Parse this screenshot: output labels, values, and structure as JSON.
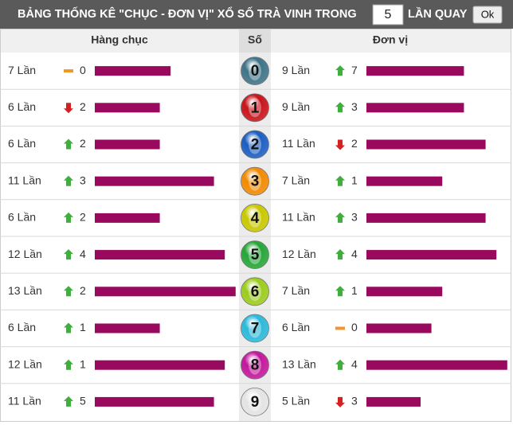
{
  "header": {
    "title": "BẢNG THỐNG KÊ \"CHỤC - ĐƠN VỊ\" XỔ SỐ TRÀ VINH TRONG",
    "input_value": "5",
    "suffix": "LẦN QUAY",
    "button": "Ok"
  },
  "table": {
    "columns": [
      "Hàng chục",
      "Số",
      "Đơn vị"
    ],
    "bar_color": "#990a5f",
    "rows": [
      {
        "digit": "0",
        "ball_color": "#3f7388",
        "tens": {
          "label": "7 Lần",
          "count": 7,
          "trend": "flat",
          "change": 0
        },
        "units": {
          "label": "9 Lần",
          "count": 9,
          "trend": "up",
          "change": 7
        }
      },
      {
        "digit": "1",
        "ball_color": "#c8141b",
        "tens": {
          "label": "6 Lần",
          "count": 6,
          "trend": "down",
          "change": 2
        },
        "units": {
          "label": "9 Lần",
          "count": 9,
          "trend": "up",
          "change": 3
        }
      },
      {
        "digit": "2",
        "ball_color": "#1c5ec2",
        "tens": {
          "label": "6 Lần",
          "count": 6,
          "trend": "up",
          "change": 2
        },
        "units": {
          "label": "11 Lần",
          "count": 11,
          "trend": "down",
          "change": 2
        }
      },
      {
        "digit": "3",
        "ball_color": "#f28a00",
        "tens": {
          "label": "11 Lần",
          "count": 11,
          "trend": "up",
          "change": 3
        },
        "units": {
          "label": "7 Lần",
          "count": 7,
          "trend": "up",
          "change": 1
        }
      },
      {
        "digit": "4",
        "ball_color": "#c9c800",
        "tens": {
          "label": "6 Lần",
          "count": 6,
          "trend": "up",
          "change": 2
        },
        "units": {
          "label": "11 Lần",
          "count": 11,
          "trend": "up",
          "change": 3
        }
      },
      {
        "digit": "5",
        "ball_color": "#26a638",
        "tens": {
          "label": "12 Lần",
          "count": 12,
          "trend": "up",
          "change": 4
        },
        "units": {
          "label": "12 Lần",
          "count": 12,
          "trend": "up",
          "change": 4
        }
      },
      {
        "digit": "6",
        "ball_color": "#9ccc1e",
        "tens": {
          "label": "13 Lần",
          "count": 13,
          "trend": "up",
          "change": 2
        },
        "units": {
          "label": "7 Lần",
          "count": 7,
          "trend": "up",
          "change": 1
        }
      },
      {
        "digit": "7",
        "ball_color": "#2cb9da",
        "tens": {
          "label": "6 Lần",
          "count": 6,
          "trend": "up",
          "change": 1
        },
        "units": {
          "label": "6 Lần",
          "count": 6,
          "trend": "flat",
          "change": 0
        }
      },
      {
        "digit": "8",
        "ball_color": "#c2189c",
        "tens": {
          "label": "12 Lần",
          "count": 12,
          "trend": "up",
          "change": 1
        },
        "units": {
          "label": "13 Lần",
          "count": 13,
          "trend": "up",
          "change": 4
        }
      },
      {
        "digit": "9",
        "ball_color": "#e4e4e4",
        "tens": {
          "label": "11 Lần",
          "count": 11,
          "trend": "up",
          "change": 5
        },
        "units": {
          "label": "5 Lần",
          "count": 5,
          "trend": "down",
          "change": 3
        }
      }
    ]
  }
}
